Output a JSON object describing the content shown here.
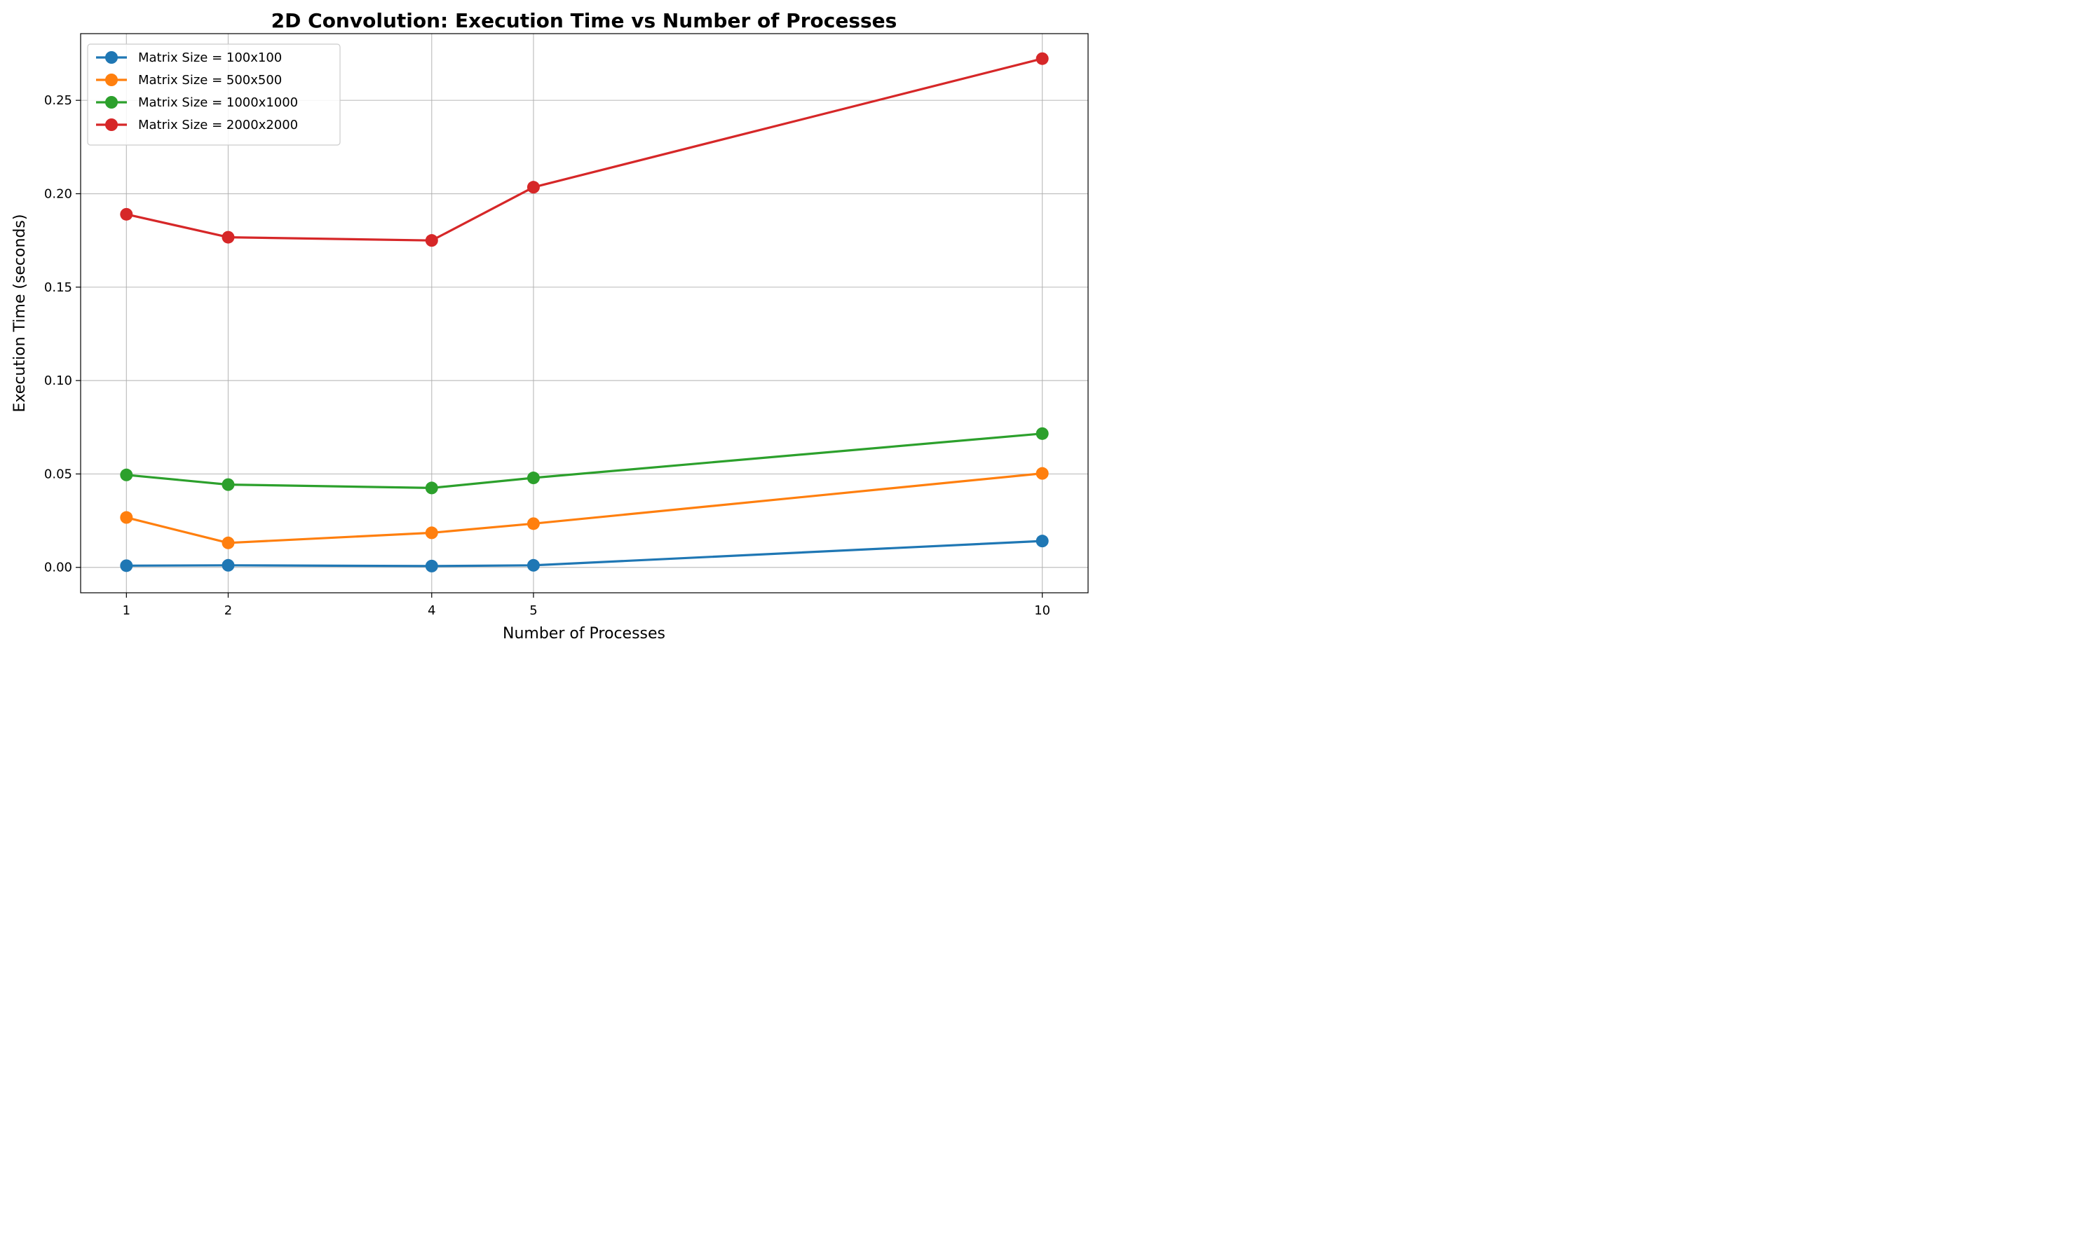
{
  "chart_data": {
    "type": "line",
    "title": "2D Convolution: Execution Time vs Number of Processes",
    "xlabel": "Number of Processes",
    "ylabel": "Execution Time (seconds)",
    "x": [
      1,
      2,
      4,
      5,
      10
    ],
    "x_tick_labels": [
      "1",
      "2",
      "4",
      "5",
      "10"
    ],
    "xlim": [
      0.55,
      10.45
    ],
    "ylim": [
      -0.0136,
      0.2857
    ],
    "y_ticks": [
      0.0,
      0.05,
      0.1,
      0.15,
      0.2,
      0.25
    ],
    "y_tick_labels": [
      "0.00",
      "0.05",
      "0.10",
      "0.15",
      "0.20",
      "0.25"
    ],
    "grid": true,
    "legend_position": "top-left",
    "series": [
      {
        "name": "Matrix Size = 100x100",
        "color": "#1f77b4",
        "values": [
          0.0009,
          0.0011,
          0.0007,
          0.0011,
          0.0141
        ]
      },
      {
        "name": "Matrix Size = 500x500",
        "color": "#ff7f0e",
        "values": [
          0.0267,
          0.0131,
          0.0185,
          0.0234,
          0.0503
        ]
      },
      {
        "name": "Matrix Size = 1000x1000",
        "color": "#2ca02c",
        "values": [
          0.0495,
          0.0443,
          0.0425,
          0.0479,
          0.0716
        ]
      },
      {
        "name": "Matrix Size = 2000x2000",
        "color": "#d62728",
        "values": [
          0.189,
          0.1767,
          0.175,
          0.2035,
          0.2723
        ]
      }
    ]
  }
}
